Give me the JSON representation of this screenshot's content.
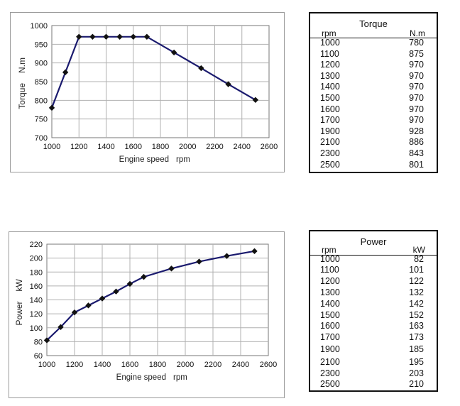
{
  "torque_table": {
    "title": "Torque",
    "col_rpm": "rpm",
    "col_value": "N.m",
    "rows": [
      {
        "rpm": "1000",
        "value": "780"
      },
      {
        "rpm": "1100",
        "value": "875"
      },
      {
        "rpm": "1200",
        "value": "970"
      },
      {
        "rpm": "1300",
        "value": "970"
      },
      {
        "rpm": "1400",
        "value": "970"
      },
      {
        "rpm": "1500",
        "value": "970"
      },
      {
        "rpm": "1600",
        "value": "970"
      },
      {
        "rpm": "1700",
        "value": "970"
      },
      {
        "rpm": "1900",
        "value": "928"
      },
      {
        "rpm": "2100",
        "value": "886"
      },
      {
        "rpm": "2300",
        "value": "843"
      },
      {
        "rpm": "2500",
        "value": "801"
      }
    ]
  },
  "power_table": {
    "title": "Power",
    "col_rpm": "rpm",
    "col_value": "kW",
    "rows": [
      {
        "rpm": "1000",
        "value": "82"
      },
      {
        "rpm": "1100",
        "value": "101"
      },
      {
        "rpm": "1200",
        "value": "122"
      },
      {
        "rpm": "1300",
        "value": "132"
      },
      {
        "rpm": "1400",
        "value": "142"
      },
      {
        "rpm": "1500",
        "value": "152"
      },
      {
        "rpm": "1600",
        "value": "163"
      },
      {
        "rpm": "1700",
        "value": "173"
      },
      {
        "rpm": "1900",
        "value": "185"
      },
      {
        "rpm": "2100",
        "value": "195"
      },
      {
        "rpm": "2300",
        "value": "203"
      },
      {
        "rpm": "2500",
        "value": "210"
      }
    ]
  },
  "chart_data": [
    {
      "type": "line",
      "xlabel": "Engine speed",
      "xunit": "rpm",
      "ylabel": "Torque",
      "yunit": "N.m",
      "x": [
        1000,
        1100,
        1200,
        1300,
        1400,
        1500,
        1600,
        1700,
        1900,
        2100,
        2300,
        2500
      ],
      "y": [
        780,
        875,
        970,
        970,
        970,
        970,
        970,
        970,
        928,
        886,
        843,
        801
      ],
      "xlim": [
        1000,
        2600
      ],
      "ylim": [
        700,
        1000
      ],
      "xticks": [
        1000,
        1200,
        1400,
        1600,
        1800,
        2000,
        2200,
        2400,
        2600
      ],
      "yticks": [
        700,
        750,
        800,
        850,
        900,
        950,
        1000
      ],
      "grid": true,
      "line_color": "#1a1a6e",
      "marker_color": "#111111"
    },
    {
      "type": "line",
      "xlabel": "Engine speed",
      "xunit": "rpm",
      "ylabel": "Power",
      "yunit": "kW",
      "x": [
        1000,
        1100,
        1200,
        1300,
        1400,
        1500,
        1600,
        1700,
        1900,
        2100,
        2300,
        2500
      ],
      "y": [
        82,
        101,
        122,
        132,
        142,
        152,
        163,
        173,
        185,
        195,
        203,
        210
      ],
      "xlim": [
        1000,
        2600
      ],
      "ylim": [
        60,
        220
      ],
      "xticks": [
        1000,
        1200,
        1400,
        1600,
        1800,
        2000,
        2200,
        2400,
        2600
      ],
      "yticks": [
        60,
        80,
        100,
        120,
        140,
        160,
        180,
        200,
        220
      ],
      "grid": true,
      "line_color": "#1a1a6e",
      "marker_color": "#111111"
    }
  ]
}
